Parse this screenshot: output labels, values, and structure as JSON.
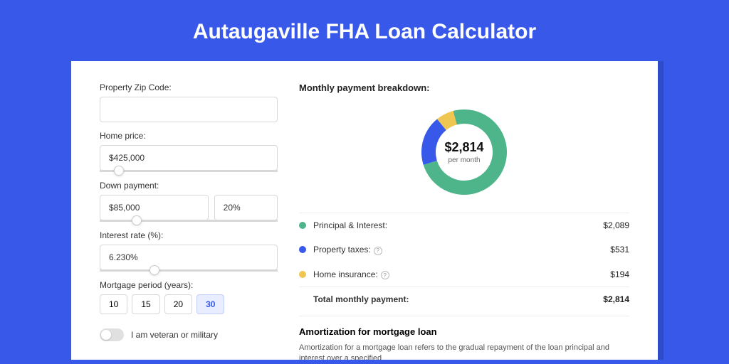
{
  "page": {
    "title": "Autaugaville FHA Loan Calculator",
    "background_color": "#3858e9",
    "shadow_color": "#2e4cc9"
  },
  "form": {
    "zip_label": "Property Zip Code:",
    "zip_value": "",
    "home_price_label": "Home price:",
    "home_price_value": "$425,000",
    "home_price_slider_pct": 8,
    "down_payment_label": "Down payment:",
    "down_payment_value": "$85,000",
    "down_payment_pct_value": "20%",
    "down_payment_slider_pct": 18,
    "interest_label": "Interest rate (%):",
    "interest_value": "6.230%",
    "interest_slider_pct": 28,
    "period_label": "Mortgage period (years):",
    "periods": [
      "10",
      "15",
      "20",
      "30"
    ],
    "period_selected": "30",
    "veteran_label": "I am veteran or military",
    "veteran_on": false
  },
  "breakdown": {
    "title": "Monthly payment breakdown:",
    "center_amount": "$2,814",
    "center_sub": "per month",
    "items": [
      {
        "label": "Principal & Interest:",
        "value": "$2,089",
        "color": "#4eb58a",
        "has_info": false
      },
      {
        "label": "Property taxes:",
        "value": "$531",
        "color": "#3858e9",
        "has_info": true
      },
      {
        "label": "Home insurance:",
        "value": "$194",
        "color": "#f0c652",
        "has_info": true
      }
    ],
    "total_label": "Total monthly payment:",
    "total_value": "$2,814",
    "donut": {
      "slice_pct": [
        74.2,
        18.9,
        6.9
      ],
      "colors": [
        "#4eb58a",
        "#3858e9",
        "#f0c652"
      ],
      "stroke_width": 20
    }
  },
  "amortization": {
    "title": "Amortization for mortgage loan",
    "text": "Amortization for a mortgage loan refers to the gradual repayment of the loan principal and interest over a specified"
  }
}
